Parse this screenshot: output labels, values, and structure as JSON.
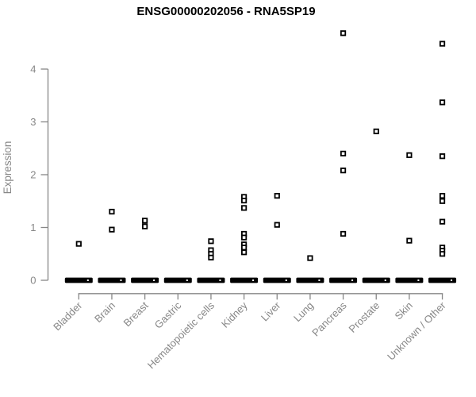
{
  "title": "ENSG00000202056 - RNA5SP19",
  "chart_data": {
    "type": "scatter",
    "title": "ENSG00000202056 - RNA5SP19",
    "xlabel": "",
    "ylabel": "Expression",
    "ylim": [
      0,
      4.75
    ],
    "yticks": [
      "0",
      "1",
      "2",
      "3",
      "4"
    ],
    "grid": false,
    "legend": "none",
    "marker": "open-square",
    "categories": [
      "Bladder",
      "Brain",
      "Breast",
      "Gastric",
      "Hematopoietic cells",
      "Kidney",
      "Liver",
      "Lung",
      "Pancreas",
      "Prostate",
      "Skin",
      "Unknown / Other"
    ],
    "points_by_category": [
      {
        "category": "Bladder",
        "values": [
          0.69
        ]
      },
      {
        "category": "Brain",
        "values": [
          1.3,
          0.96
        ]
      },
      {
        "category": "Breast",
        "values": [
          1.13,
          1.02
        ]
      },
      {
        "category": "Gastric",
        "values": []
      },
      {
        "category": "Hematopoietic cells",
        "values": [
          0.74,
          0.57,
          0.5,
          0.43
        ]
      },
      {
        "category": "Kidney",
        "values": [
          1.58,
          1.51,
          1.37,
          0.88,
          0.81,
          0.68,
          0.62,
          0.53
        ]
      },
      {
        "category": "Liver",
        "values": [
          1.6,
          1.05
        ]
      },
      {
        "category": "Lung",
        "values": [
          0.42
        ]
      },
      {
        "category": "Pancreas",
        "values": [
          4.68,
          2.4,
          2.08,
          0.88
        ]
      },
      {
        "category": "Prostate",
        "values": [
          2.82
        ]
      },
      {
        "category": "Skin",
        "values": [
          2.37,
          0.75
        ]
      },
      {
        "category": "Unknown / Other",
        "values": [
          4.48,
          3.37,
          2.35,
          1.6,
          1.5,
          1.11,
          0.62,
          0.56,
          0.5
        ]
      }
    ],
    "zero_bar": {
      "present_in_all_categories": true,
      "value": 0,
      "note": "dense cluster of overlapping sample points at expression 0 rendered as a thick black bar"
    },
    "colors": {
      "point": "#000000",
      "axis": "#878787",
      "tick_label": "#878787",
      "title": "#000000",
      "background": "#ffffff"
    }
  }
}
